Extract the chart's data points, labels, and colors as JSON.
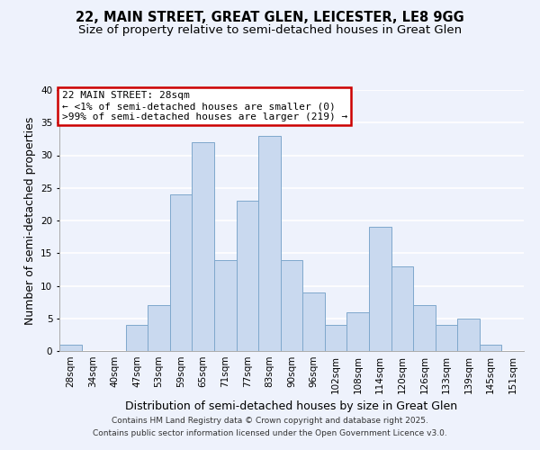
{
  "title_line1": "22, MAIN STREET, GREAT GLEN, LEICESTER, LE8 9GG",
  "title_line2": "Size of property relative to semi-detached houses in Great Glen",
  "xlabel": "Distribution of semi-detached houses by size in Great Glen",
  "ylabel": "Number of semi-detached properties",
  "bar_labels": [
    "28sqm",
    "34sqm",
    "40sqm",
    "47sqm",
    "53sqm",
    "59sqm",
    "65sqm",
    "71sqm",
    "77sqm",
    "83sqm",
    "90sqm",
    "96sqm",
    "102sqm",
    "108sqm",
    "114sqm",
    "120sqm",
    "126sqm",
    "133sqm",
    "139sqm",
    "145sqm",
    "151sqm"
  ],
  "bar_heights": [
    1,
    0,
    0,
    4,
    7,
    24,
    32,
    14,
    23,
    33,
    14,
    9,
    4,
    6,
    19,
    13,
    7,
    4,
    5,
    1,
    0
  ],
  "bar_color": "#c9d9ef",
  "bar_edge_color": "#7fa8cc",
  "annotation_line1": "22 MAIN STREET: 28sqm",
  "annotation_line2": "← <1% of semi-detached houses are smaller (0)",
  "annotation_line3": ">99% of semi-detached houses are larger (219) →",
  "annotation_box_color": "#ffffff",
  "annotation_box_edge_color": "#cc0000",
  "ylim": [
    0,
    40
  ],
  "yticks": [
    0,
    5,
    10,
    15,
    20,
    25,
    30,
    35,
    40
  ],
  "background_color": "#eef2fc",
  "grid_color": "#ffffff",
  "footer_line1": "Contains HM Land Registry data © Crown copyright and database right 2025.",
  "footer_line2": "Contains public sector information licensed under the Open Government Licence v3.0.",
  "title_fontsize": 10.5,
  "subtitle_fontsize": 9.5,
  "axis_label_fontsize": 9,
  "tick_fontsize": 7.5,
  "annotation_fontsize": 8,
  "footer_fontsize": 6.5
}
